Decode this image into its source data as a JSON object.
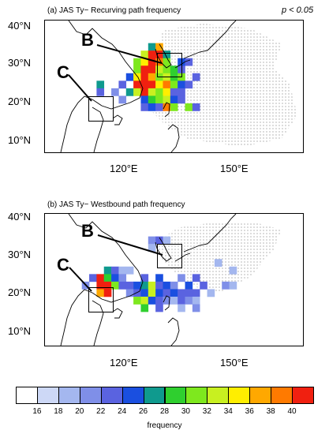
{
  "panels": [
    {
      "title": "(a)  JAS Ty− Recurving path frequency",
      "significance": "p < 0.05",
      "boxes": [
        {
          "label": "B"
        },
        {
          "label": "C"
        }
      ],
      "cells": [
        [
          128,
          32,
          26
        ],
        [
          130,
          32,
          36
        ],
        [
          126,
          30,
          32
        ],
        [
          128,
          30,
          40
        ],
        [
          130,
          30,
          40
        ],
        [
          132,
          30,
          26
        ],
        [
          124,
          28,
          30
        ],
        [
          126,
          28,
          34
        ],
        [
          128,
          28,
          40
        ],
        [
          130,
          28,
          38
        ],
        [
          132,
          28,
          30
        ],
        [
          136,
          28,
          24
        ],
        [
          138,
          28,
          22
        ],
        [
          124,
          26,
          30
        ],
        [
          126,
          26,
          40
        ],
        [
          128,
          26,
          40
        ],
        [
          130,
          26,
          32
        ],
        [
          132,
          26,
          30
        ],
        [
          134,
          26,
          28
        ],
        [
          136,
          26,
          22
        ],
        [
          122,
          24,
          24
        ],
        [
          124,
          24,
          34
        ],
        [
          126,
          24,
          40
        ],
        [
          128,
          24,
          36
        ],
        [
          130,
          24,
          30
        ],
        [
          132,
          24,
          32
        ],
        [
          134,
          24,
          28
        ],
        [
          136,
          24,
          30
        ],
        [
          140,
          24,
          22
        ],
        [
          114,
          22,
          26
        ],
        [
          120,
          22,
          22
        ],
        [
          124,
          22,
          40
        ],
        [
          126,
          22,
          40
        ],
        [
          128,
          22,
          40
        ],
        [
          130,
          22,
          34
        ],
        [
          132,
          22,
          38
        ],
        [
          134,
          22,
          30
        ],
        [
          136,
          22,
          24
        ],
        [
          138,
          22,
          22
        ],
        [
          114,
          20,
          22
        ],
        [
          118,
          20,
          20
        ],
        [
          122,
          20,
          26
        ],
        [
          124,
          20,
          32
        ],
        [
          126,
          20,
          40
        ],
        [
          128,
          20,
          32
        ],
        [
          130,
          20,
          30
        ],
        [
          132,
          20,
          34
        ],
        [
          134,
          20,
          22
        ],
        [
          136,
          20,
          22
        ],
        [
          120,
          18,
          20
        ],
        [
          126,
          18,
          24
        ],
        [
          128,
          18,
          28
        ],
        [
          130,
          18,
          30
        ],
        [
          132,
          18,
          32
        ],
        [
          134,
          18,
          24
        ],
        [
          136,
          18,
          22
        ],
        [
          126,
          16,
          22
        ],
        [
          128,
          16,
          24
        ],
        [
          130,
          16,
          22
        ],
        [
          132,
          16,
          38
        ],
        [
          134,
          16,
          30
        ],
        [
          138,
          16,
          30
        ],
        [
          140,
          16,
          22
        ]
      ]
    },
    {
      "title": "(b)  JAS Ty− Westbound path frequency",
      "significance": "",
      "boxes": [
        {
          "label": "B"
        },
        {
          "label": "C"
        }
      ],
      "cells": [
        [
          128,
          32,
          20
        ],
        [
          130,
          32,
          22
        ],
        [
          132,
          32,
          18
        ],
        [
          128,
          30,
          18
        ],
        [
          116,
          24,
          26
        ],
        [
          118,
          24,
          22
        ],
        [
          120,
          24,
          18
        ],
        [
          122,
          24,
          18
        ],
        [
          112,
          22,
          22
        ],
        [
          114,
          22,
          40
        ],
        [
          116,
          22,
          28
        ],
        [
          118,
          22,
          24
        ],
        [
          120,
          22,
          20
        ],
        [
          126,
          22,
          22
        ],
        [
          130,
          22,
          24
        ],
        [
          136,
          22,
          20
        ],
        [
          140,
          22,
          22
        ],
        [
          110,
          20,
          20
        ],
        [
          114,
          20,
          40
        ],
        [
          116,
          20,
          40
        ],
        [
          118,
          20,
          30
        ],
        [
          120,
          20,
          22
        ],
        [
          122,
          20,
          22
        ],
        [
          124,
          20,
          24
        ],
        [
          126,
          20,
          26
        ],
        [
          128,
          20,
          32
        ],
        [
          130,
          20,
          22
        ],
        [
          132,
          20,
          24
        ],
        [
          134,
          20,
          20
        ],
        [
          138,
          20,
          24
        ],
        [
          142,
          20,
          22
        ],
        [
          148,
          20,
          20
        ],
        [
          150,
          20,
          18
        ],
        [
          114,
          18,
          36
        ],
        [
          116,
          18,
          40
        ],
        [
          122,
          18,
          20
        ],
        [
          124,
          18,
          22
        ],
        [
          126,
          18,
          24
        ],
        [
          128,
          18,
          32
        ],
        [
          130,
          18,
          24
        ],
        [
          132,
          18,
          22
        ],
        [
          134,
          18,
          24
        ],
        [
          136,
          18,
          22
        ],
        [
          138,
          18,
          22
        ],
        [
          140,
          18,
          22
        ],
        [
          144,
          18,
          18
        ],
        [
          124,
          16,
          30
        ],
        [
          126,
          16,
          32
        ],
        [
          128,
          16,
          24
        ],
        [
          130,
          16,
          22
        ],
        [
          132,
          16,
          20
        ],
        [
          134,
          16,
          18
        ],
        [
          136,
          16,
          22
        ],
        [
          138,
          16,
          20
        ],
        [
          140,
          16,
          18
        ],
        [
          126,
          14,
          28
        ],
        [
          130,
          14,
          22
        ],
        [
          136,
          14,
          18
        ],
        [
          140,
          14,
          20
        ],
        [
          146,
          26,
          18
        ],
        [
          150,
          24,
          18
        ]
      ]
    }
  ],
  "axes": {
    "lat_labels": [
      "40°N",
      "30°N",
      "20°N",
      "10°N"
    ],
    "lat_values": [
      40,
      30,
      20,
      10
    ],
    "lon_labels": [
      "120°E",
      "150°E"
    ],
    "lon_values": [
      120,
      150
    ],
    "lon_range": [
      100,
      170
    ],
    "lat_range": [
      5,
      40
    ]
  },
  "colorbar": {
    "title": "frequency",
    "ticks": [
      "16",
      "18",
      "20",
      "22",
      "24",
      "26",
      "28",
      "30",
      "32",
      "34",
      "36",
      "38",
      "40"
    ],
    "colors": [
      "#ffffff",
      "#cdd8f6",
      "#a4b7ef",
      "#7f8fe8",
      "#5a63e0",
      "#1a4fe0",
      "#0f9a8e",
      "#2fcf2f",
      "#7ee81e",
      "#c8f020",
      "#ffee00",
      "#ffa800",
      "#ff7a00",
      "#f02010"
    ]
  }
}
